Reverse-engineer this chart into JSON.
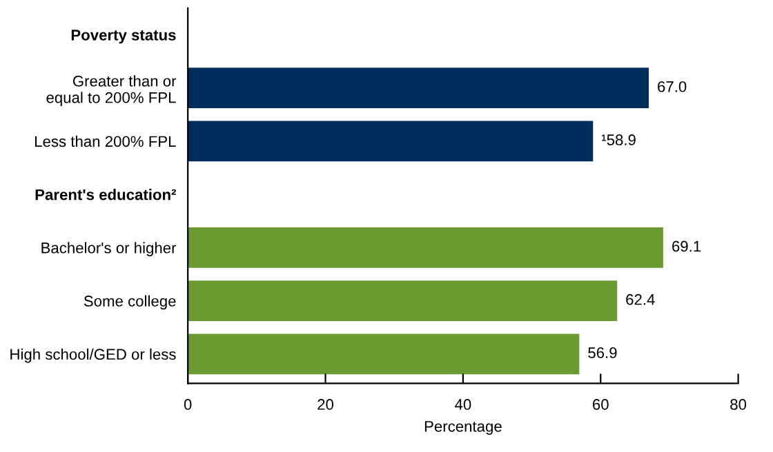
{
  "chart_data": {
    "type": "bar",
    "orientation": "horizontal",
    "xlabel": "Percentage",
    "categories": [
      "Poverty status",
      "Greater than or\nequal to 200% FPL",
      "Less than 200% FPL",
      "Parent's education²",
      "Bachelor's or higher",
      "Some college",
      "High school/GED or less"
    ],
    "values": [
      null,
      67.0,
      58.9,
      null,
      69.1,
      62.4,
      56.9
    ],
    "colors": [
      null,
      "#002d5b",
      "#002d5b",
      null,
      "#6b9a33",
      "#6b9a33",
      "#6b9a33"
    ],
    "value_labels": [
      null,
      "67.0",
      "¹58.9",
      null,
      "69.1",
      "62.4",
      "56.9"
    ],
    "xlim": [
      0,
      80
    ],
    "xticks": [
      0,
      20,
      40,
      60,
      80
    ],
    "grid": false,
    "legend": false
  }
}
